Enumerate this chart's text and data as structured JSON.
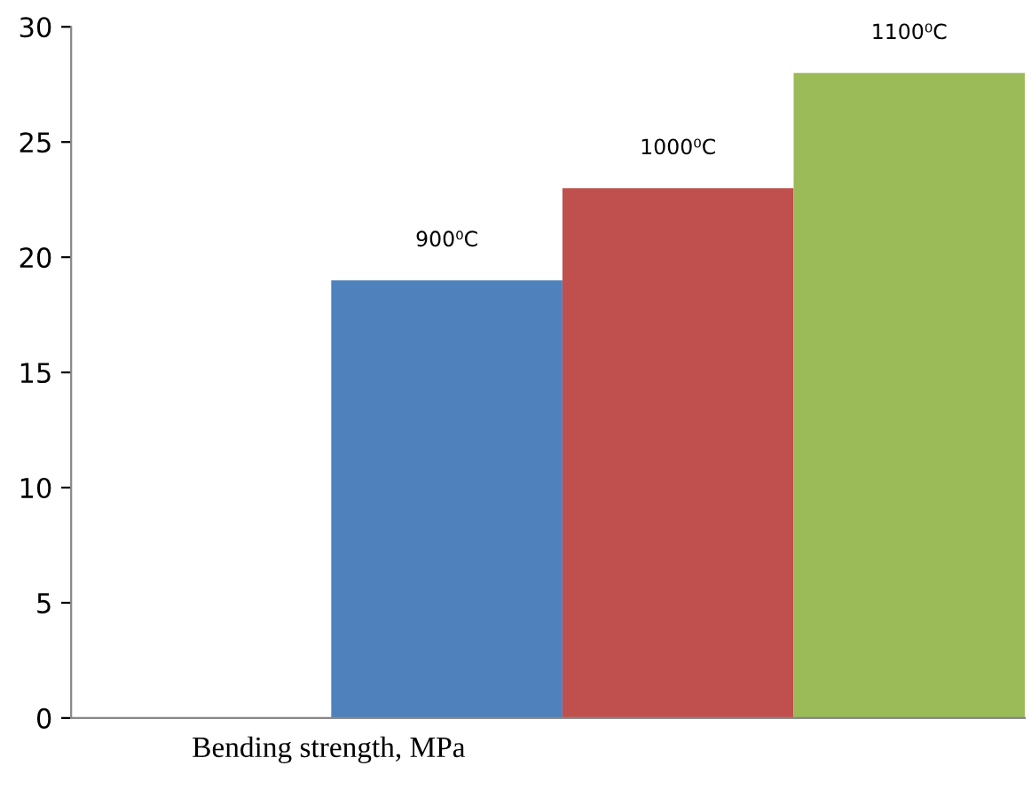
{
  "chart_data": {
    "type": "bar",
    "xlabel": "Bending strength, MPa",
    "categories": [
      null
    ],
    "series": [
      {
        "name": "900⁰C",
        "color": "#4f81bd",
        "values": [
          19
        ]
      },
      {
        "name": "1000⁰C",
        "color": "#c0504d",
        "values": [
          23
        ]
      },
      {
        "name": "1100⁰C",
        "color": "#9bbb59",
        "values": [
          28
        ]
      }
    ],
    "ylim": [
      0,
      30
    ],
    "yticks": [
      0,
      5,
      10,
      15,
      20,
      25,
      30
    ],
    "grid": false,
    "legend": false
  }
}
